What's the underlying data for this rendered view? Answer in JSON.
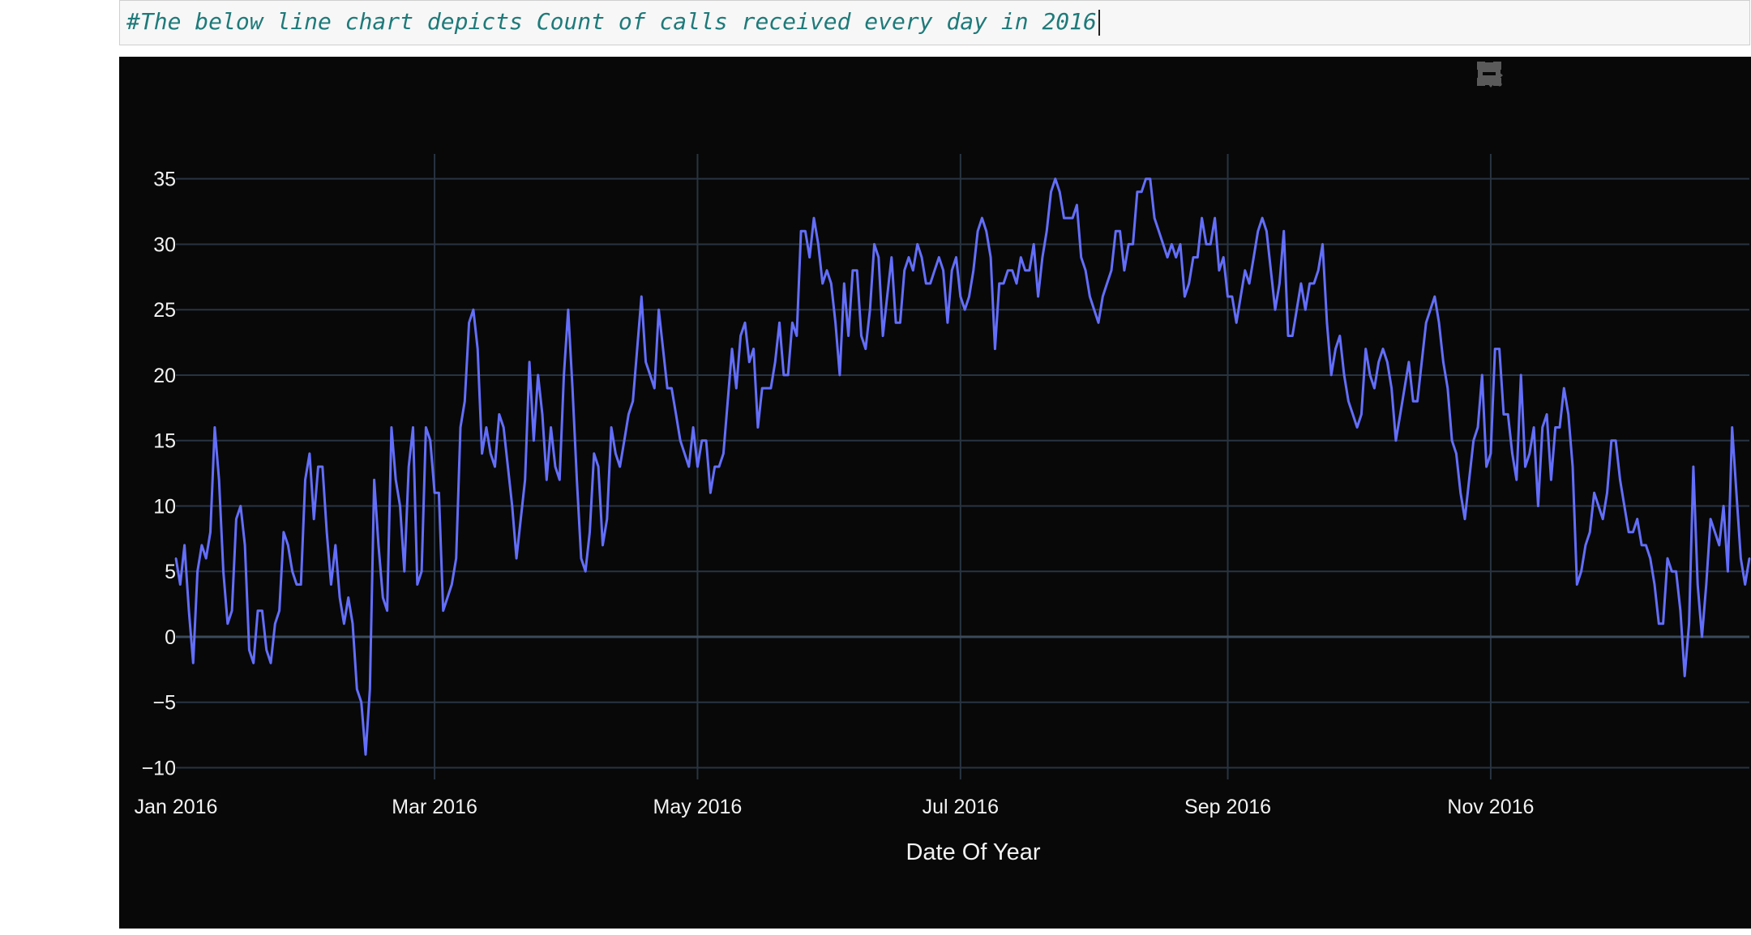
{
  "cell": {
    "code": "#The below line chart depicts Count of calls received every day in 2016"
  },
  "modebar": [
    "camera-icon",
    "zoom-icon",
    "pan-icon",
    "zoom-in-icon",
    "zoom-out-icon",
    "autoscale-icon"
  ],
  "colors": {
    "background": "#080808",
    "grid": "#283442",
    "zeroline": "#3a4a5a",
    "line": "#636efa",
    "text": "#f2f2f2"
  },
  "chart_data": {
    "type": "line",
    "title": "",
    "xlabel": "Date Of Year",
    "ylabel": "",
    "x_range": [
      "2016-01-01",
      "2016-12-31"
    ],
    "ylim": [
      -10.9,
      36.9
    ],
    "x_ticks": [
      {
        "date": "2016-01-01",
        "label": "Jan 2016"
      },
      {
        "date": "2016-03-01",
        "label": "Mar 2016"
      },
      {
        "date": "2016-05-01",
        "label": "May 2016"
      },
      {
        "date": "2016-07-01",
        "label": "Jul 2016"
      },
      {
        "date": "2016-09-01",
        "label": "Sep 2016"
      },
      {
        "date": "2016-11-01",
        "label": "Nov 2016"
      }
    ],
    "y_ticks": [
      {
        "value": -10,
        "label": "−10"
      },
      {
        "value": -5,
        "label": "−5"
      },
      {
        "value": 0,
        "label": "0"
      },
      {
        "value": 5,
        "label": "5"
      },
      {
        "value": 10,
        "label": "10"
      },
      {
        "value": 15,
        "label": "15"
      },
      {
        "value": 20,
        "label": "20"
      },
      {
        "value": 25,
        "label": "25"
      },
      {
        "value": 30,
        "label": "30"
      },
      {
        "value": 35,
        "label": "35"
      }
    ],
    "grid": true,
    "series": [
      {
        "x_start": "2016-01-01",
        "x_step": "1 day",
        "values": [
          6,
          4,
          7,
          2,
          -2,
          5,
          7,
          6,
          8,
          16,
          12,
          5,
          1,
          2,
          9,
          10,
          7,
          -1,
          -2,
          2,
          2,
          -1,
          -2,
          1,
          2,
          8,
          7,
          5,
          4,
          4,
          12,
          14,
          9,
          13,
          13,
          8,
          4,
          7,
          3,
          1,
          3,
          1,
          -4,
          -5,
          -9,
          -4,
          12,
          7,
          3,
          2,
          16,
          12,
          10,
          5,
          13,
          16,
          4,
          5,
          16,
          15,
          11,
          11,
          2,
          3,
          4,
          6,
          16,
          18,
          24,
          25,
          22,
          14,
          16,
          14,
          13,
          17,
          16,
          13,
          10,
          6,
          9,
          12,
          21,
          15,
          20,
          17,
          12,
          16,
          13,
          12,
          20,
          25,
          19,
          12,
          6,
          5,
          8,
          14,
          13,
          7,
          9,
          16,
          14,
          13,
          15,
          17,
          18,
          22,
          26,
          21,
          20,
          19,
          25,
          22,
          19,
          19,
          17,
          15,
          14,
          13,
          16,
          13,
          15,
          15,
          11,
          13,
          13,
          14,
          18,
          22,
          19,
          23,
          24,
          21,
          22,
          16,
          19,
          19,
          19,
          21,
          24,
          20,
          20,
          24,
          23,
          31,
          31,
          29,
          32,
          30,
          27,
          28,
          27,
          24,
          20,
          27,
          23,
          28,
          28,
          23,
          22,
          25,
          30,
          29,
          23,
          26,
          29,
          24,
          24,
          28,
          29,
          28,
          30,
          29,
          27,
          27,
          28,
          29,
          28,
          24,
          28,
          29,
          26,
          25,
          26,
          28,
          31,
          32,
          31,
          29,
          22,
          27,
          27,
          28,
          28,
          27,
          29,
          28,
          28,
          30,
          26,
          29,
          31,
          34,
          35,
          34,
          32,
          32,
          32,
          33,
          29,
          28,
          26,
          25,
          24,
          26,
          27,
          28,
          31,
          31,
          28,
          30,
          30,
          34,
          34,
          35,
          35,
          32,
          31,
          30,
          29,
          30,
          29,
          30,
          26,
          27,
          29,
          29,
          32,
          30,
          30,
          32,
          28,
          29,
          26,
          26,
          24,
          26,
          28,
          27,
          29,
          31,
          32,
          31,
          28,
          25,
          27,
          31,
          23,
          23,
          25,
          27,
          25,
          27,
          27,
          28,
          30,
          24,
          20,
          22,
          23,
          20,
          18,
          17,
          16,
          17,
          22,
          20,
          19,
          21,
          22,
          21,
          19,
          15,
          17,
          19,
          21,
          18,
          18,
          21,
          24,
          25,
          26,
          24,
          21,
          19,
          15,
          14,
          11,
          9,
          12,
          15,
          16,
          20,
          13,
          14,
          22,
          22,
          17,
          17,
          14,
          12,
          20,
          13,
          14,
          16,
          10,
          16,
          17,
          12,
          16,
          16,
          19,
          17,
          13,
          4,
          5,
          7,
          8,
          11,
          10,
          9,
          11,
          15,
          15,
          12,
          10,
          8,
          8,
          9,
          7,
          7,
          6,
          4,
          1,
          1,
          6,
          5,
          5,
          2,
          -3,
          1,
          13,
          4,
          0,
          4,
          9,
          8,
          7,
          10,
          5,
          16,
          11,
          6,
          4,
          6
        ]
      }
    ]
  }
}
